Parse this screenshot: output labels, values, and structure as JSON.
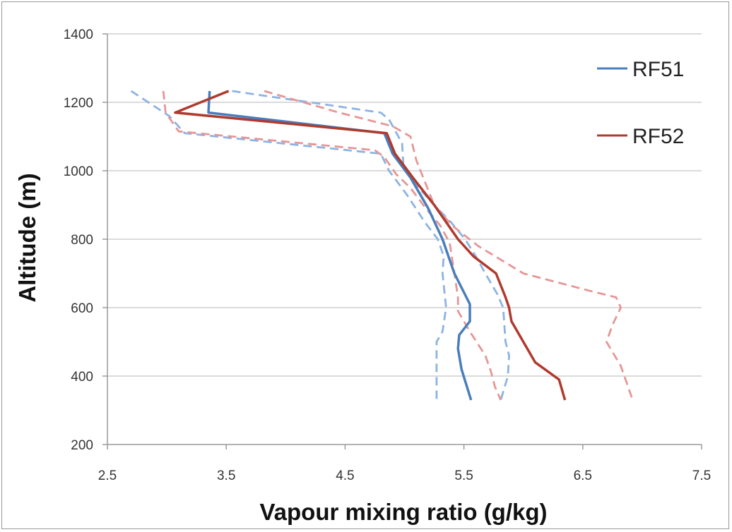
{
  "chart_data": {
    "type": "line",
    "title": "",
    "xlabel": "Vapour mixing ratio (g/kg)",
    "ylabel": "Altitude (m)",
    "xlim": [
      2.5,
      7.5
    ],
    "ylim": [
      200,
      1400
    ],
    "x_ticks": [
      "2.5",
      "3.5",
      "4.5",
      "5.5",
      "6.5",
      "7.5"
    ],
    "y_ticks": [
      "200",
      "400",
      "600",
      "800",
      "1000",
      "1200",
      "1400"
    ],
    "grid": "horizontal",
    "legend_position": "top-right",
    "series": [
      {
        "name": "RF51",
        "color": "#4a7ebb",
        "style": "solid",
        "points": [
          [
            3.36,
            1233
          ],
          [
            3.35,
            1170
          ],
          [
            4.83,
            1110
          ],
          [
            4.9,
            1050
          ],
          [
            5.05,
            980
          ],
          [
            5.2,
            890
          ],
          [
            5.32,
            800
          ],
          [
            5.42,
            700
          ],
          [
            5.55,
            610
          ],
          [
            5.55,
            560
          ],
          [
            5.46,
            520
          ],
          [
            5.45,
            480
          ],
          [
            5.48,
            420
          ],
          [
            5.56,
            330
          ]
        ]
      },
      {
        "name": "",
        "color": "#8db3e2",
        "style": "dashed",
        "points": [
          [
            2.7,
            1233
          ],
          [
            3.02,
            1160
          ],
          [
            3.15,
            1110
          ],
          [
            4.8,
            1050
          ],
          [
            4.87,
            1000
          ],
          [
            5.02,
            930
          ],
          [
            5.17,
            850
          ],
          [
            5.28,
            800
          ],
          [
            5.33,
            750
          ],
          [
            5.32,
            700
          ],
          [
            5.35,
            600
          ],
          [
            5.32,
            530
          ],
          [
            5.27,
            500
          ],
          [
            5.27,
            330
          ]
        ]
      },
      {
        "name": "",
        "color": "#8db3e2",
        "style": "dashed",
        "points": [
          [
            3.55,
            1233
          ],
          [
            4.8,
            1170
          ],
          [
            4.87,
            1150
          ],
          [
            4.98,
            1080
          ],
          [
            4.99,
            1020
          ],
          [
            5.12,
            950
          ],
          [
            5.25,
            900
          ],
          [
            5.39,
            850
          ],
          [
            5.51,
            800
          ],
          [
            5.6,
            750
          ],
          [
            5.68,
            700
          ],
          [
            5.78,
            640
          ],
          [
            5.83,
            600
          ],
          [
            5.85,
            500
          ],
          [
            5.88,
            460
          ],
          [
            5.87,
            400
          ],
          [
            5.81,
            330
          ]
        ]
      },
      {
        "name": "RF52",
        "color": "#b03a2e",
        "style": "solid",
        "points": [
          [
            3.52,
            1233
          ],
          [
            3.07,
            1170
          ],
          [
            4.85,
            1110
          ],
          [
            4.92,
            1050
          ],
          [
            5.07,
            980
          ],
          [
            5.25,
            900
          ],
          [
            5.45,
            800
          ],
          [
            5.58,
            750
          ],
          [
            5.77,
            700
          ],
          [
            5.85,
            630
          ],
          [
            5.88,
            600
          ],
          [
            5.9,
            560
          ],
          [
            6.0,
            500
          ],
          [
            6.1,
            440
          ],
          [
            6.3,
            390
          ],
          [
            6.35,
            330
          ]
        ]
      },
      {
        "name": "",
        "color": "#e69696",
        "style": "dashed",
        "points": [
          [
            2.97,
            1233
          ],
          [
            2.99,
            1170
          ],
          [
            3.1,
            1115
          ],
          [
            4.75,
            1060
          ],
          [
            4.83,
            1040
          ],
          [
            4.93,
            990
          ],
          [
            5.05,
            950
          ],
          [
            5.18,
            890
          ],
          [
            5.3,
            840
          ],
          [
            5.38,
            790
          ],
          [
            5.42,
            700
          ],
          [
            5.45,
            630
          ],
          [
            5.45,
            590
          ],
          [
            5.55,
            530
          ],
          [
            5.68,
            460
          ],
          [
            5.73,
            410
          ],
          [
            5.76,
            370
          ],
          [
            5.81,
            330
          ]
        ]
      },
      {
        "name": "",
        "color": "#e69696",
        "style": "dashed",
        "points": [
          [
            3.82,
            1233
          ],
          [
            4.45,
            1170
          ],
          [
            4.9,
            1130
          ],
          [
            5.05,
            1100
          ],
          [
            5.1,
            1030
          ],
          [
            5.25,
            900
          ],
          [
            5.4,
            840
          ],
          [
            5.62,
            780
          ],
          [
            6.0,
            700
          ],
          [
            6.55,
            650
          ],
          [
            6.78,
            630
          ],
          [
            6.82,
            600
          ],
          [
            6.75,
            550
          ],
          [
            6.7,
            500
          ],
          [
            6.82,
            430
          ],
          [
            6.92,
            330
          ]
        ]
      }
    ]
  }
}
